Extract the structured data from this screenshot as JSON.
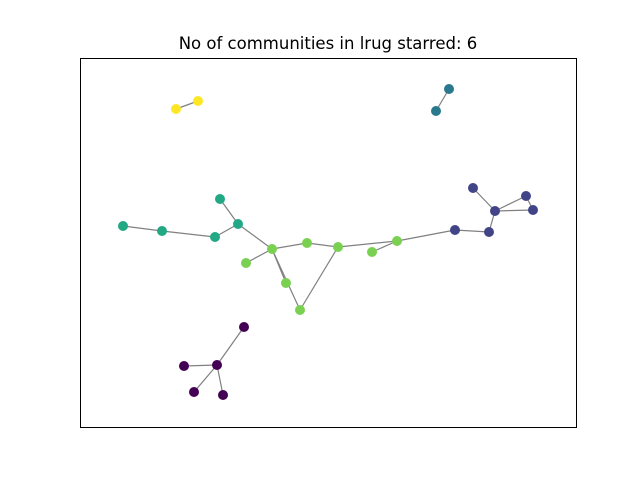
{
  "figure": {
    "title": "No of communities in lrug starred: 6"
  },
  "community_colors": {
    "c0": "#440154",
    "c1": "#414487",
    "c2": "#2a788e",
    "c3": "#22a884",
    "c4": "#7ad151",
    "c5": "#fde725"
  },
  "graph": {
    "nodes": [
      {
        "id": "n1",
        "community": "c5"
      },
      {
        "id": "n2",
        "community": "c5"
      },
      {
        "id": "n3",
        "community": "c2"
      },
      {
        "id": "n4",
        "community": "c2"
      },
      {
        "id": "n5",
        "community": "c1"
      },
      {
        "id": "n6",
        "community": "c1"
      },
      {
        "id": "n7",
        "community": "c1"
      },
      {
        "id": "n8",
        "community": "c1"
      },
      {
        "id": "n9",
        "community": "c1"
      },
      {
        "id": "n10",
        "community": "c1"
      },
      {
        "id": "n11",
        "community": "c3"
      },
      {
        "id": "n12",
        "community": "c3"
      },
      {
        "id": "n13",
        "community": "c3"
      },
      {
        "id": "n14",
        "community": "c3"
      },
      {
        "id": "n15",
        "community": "c3"
      },
      {
        "id": "n16",
        "community": "c4"
      },
      {
        "id": "n17",
        "community": "c4"
      },
      {
        "id": "n18",
        "community": "c4"
      },
      {
        "id": "n19",
        "community": "c4"
      },
      {
        "id": "n20",
        "community": "c4"
      },
      {
        "id": "n21",
        "community": "c4"
      },
      {
        "id": "n22",
        "community": "c4"
      },
      {
        "id": "n23",
        "community": "c4"
      },
      {
        "id": "n24",
        "community": "c0"
      },
      {
        "id": "n25",
        "community": "c0"
      },
      {
        "id": "n26",
        "community": "c0"
      },
      {
        "id": "n27",
        "community": "c0"
      },
      {
        "id": "n28",
        "community": "c0"
      }
    ],
    "edges": [
      [
        "n1",
        "n2"
      ],
      [
        "n3",
        "n4"
      ],
      [
        "n5",
        "n6"
      ],
      [
        "n6",
        "n7"
      ],
      [
        "n6",
        "n8"
      ],
      [
        "n7",
        "n8"
      ],
      [
        "n6",
        "n9"
      ],
      [
        "n9",
        "n10"
      ],
      [
        "n10",
        "n22"
      ],
      [
        "n11",
        "n12"
      ],
      [
        "n12",
        "n13"
      ],
      [
        "n13",
        "n14"
      ],
      [
        "n14",
        "n15"
      ],
      [
        "n14",
        "n16"
      ],
      [
        "n16",
        "n17"
      ],
      [
        "n16",
        "n18"
      ],
      [
        "n16",
        "n19"
      ],
      [
        "n16",
        "n20"
      ],
      [
        "n20",
        "n21"
      ],
      [
        "n19",
        "n21"
      ],
      [
        "n21",
        "n22"
      ],
      [
        "n22",
        "n23"
      ],
      [
        "n24",
        "n25"
      ],
      [
        "n25",
        "n26"
      ],
      [
        "n25",
        "n27"
      ],
      [
        "n25",
        "n28"
      ]
    ]
  }
}
